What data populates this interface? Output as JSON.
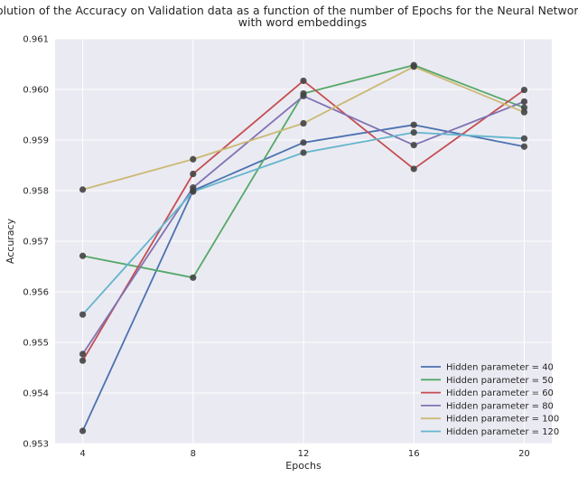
{
  "chart_data": {
    "type": "line",
    "title": "Evolution of the Accuracy on Validation data as a function of the number of Epochs for the Neural Network Model",
    "subtitle": "with word embeddings",
    "xlabel": "Epochs",
    "ylabel": "Accuracy",
    "x": [
      4,
      8,
      12,
      16,
      20
    ],
    "x_tick_labels": [
      "4",
      "8",
      "12",
      "16",
      "20"
    ],
    "xlim": [
      3,
      21
    ],
    "ylim": [
      0.953,
      0.961
    ],
    "y_ticks": [
      0.953,
      0.954,
      0.955,
      0.956,
      0.957,
      0.958,
      0.959,
      0.96,
      0.961
    ],
    "y_tick_labels": [
      "0.953",
      "0.954",
      "0.955",
      "0.956",
      "0.957",
      "0.958",
      "0.959",
      "0.960",
      "0.961"
    ],
    "grid": true,
    "legend_position": "bottom-right",
    "background": "#eaeaf2",
    "marker_color": "#444444",
    "series": [
      {
        "name": "Hidden parameter = 40",
        "color": "#4c72b0",
        "values": [
          0.95325,
          0.958,
          0.95895,
          0.9593,
          0.95887
        ]
      },
      {
        "name": "Hidden parameter = 50",
        "color": "#55a868",
        "values": [
          0.95671,
          0.95628,
          0.95992,
          0.96048,
          0.95964
        ]
      },
      {
        "name": "Hidden parameter = 60",
        "color": "#c44e52",
        "values": [
          0.95464,
          0.95833,
          0.96017,
          0.95843,
          0.95999
        ]
      },
      {
        "name": "Hidden parameter = 80",
        "color": "#8172b2",
        "values": [
          0.95477,
          0.95806,
          0.95987,
          0.9589,
          0.95976
        ]
      },
      {
        "name": "Hidden parameter = 100",
        "color": "#ccb974",
        "values": [
          0.95802,
          0.95862,
          0.95933,
          0.96045,
          0.95955
        ]
      },
      {
        "name": "Hidden parameter = 120",
        "color": "#64b5cd",
        "values": [
          0.95555,
          0.95798,
          0.95875,
          0.95915,
          0.95903
        ]
      }
    ]
  }
}
